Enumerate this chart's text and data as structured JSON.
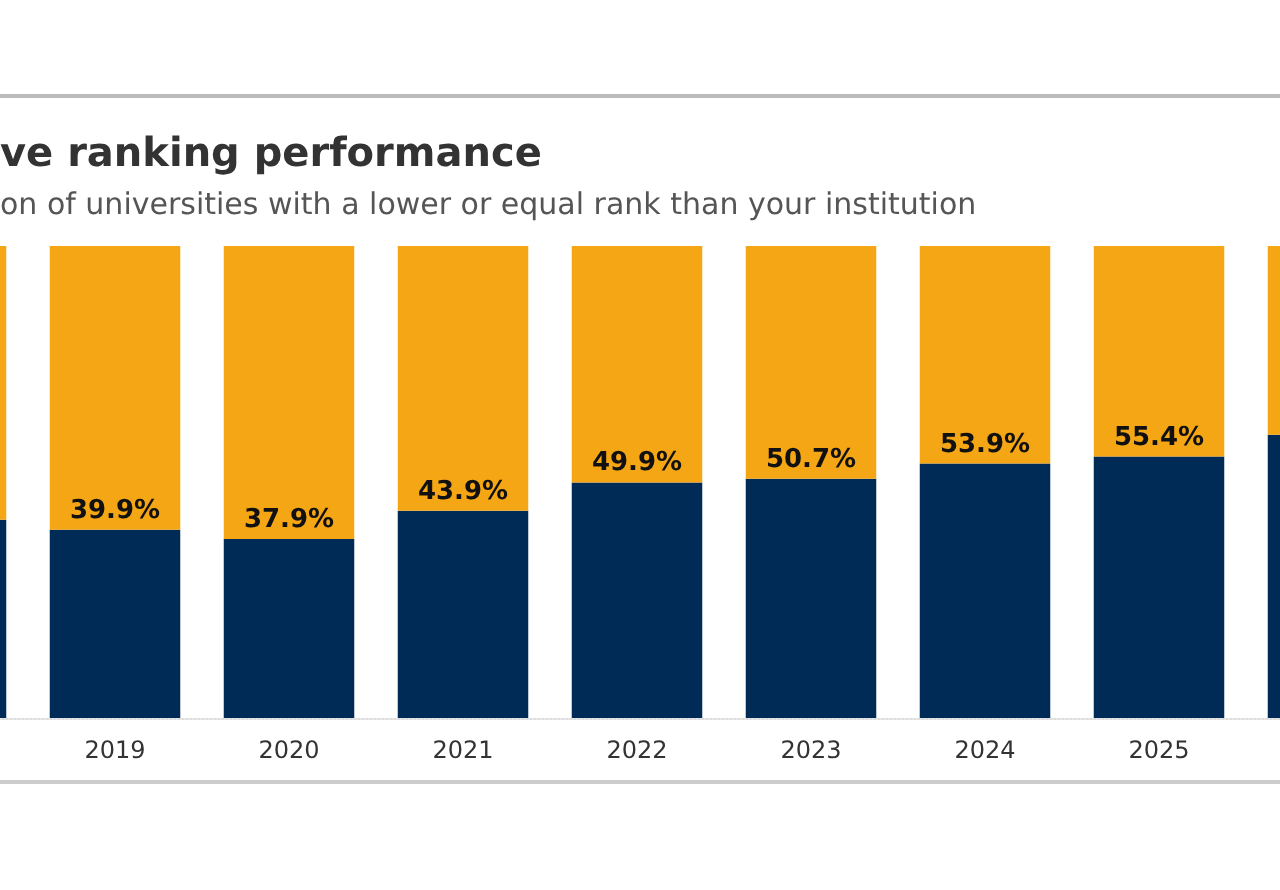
{
  "chart_data": {
    "type": "bar",
    "title": "ve ranking performance",
    "subtitle": "on of universities with a lower or equal rank than your institution",
    "categories": [
      null,
      "2019",
      "2020",
      "2021",
      "2022",
      "2023",
      "2024",
      "2025",
      null
    ],
    "stacked": true,
    "ylim": [
      0,
      100
    ],
    "tick_labels": "x",
    "grid": false,
    "series": [
      {
        "color": "#002b57",
        "values": [
          42,
          39.9,
          37.9,
          43.9,
          49.9,
          50.7,
          53.9,
          55.4,
          60
        ],
        "value_labels": [
          null,
          "39.9%",
          "37.9%",
          "43.9%",
          "49.9%",
          "50.7%",
          "53.9%",
          "55.4%",
          null
        ]
      },
      {
        "color": "#f5a614",
        "values": [
          58,
          60.1,
          62.1,
          56.1,
          50.1,
          49.3,
          46.1,
          44.6,
          40
        ]
      }
    ]
  }
}
